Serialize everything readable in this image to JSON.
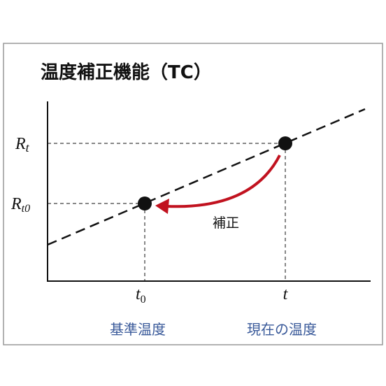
{
  "title": "温度補正機能（TC）",
  "y_labels": [
    {
      "main": "R",
      "sub": "t"
    },
    {
      "main": "R",
      "sub": "t0"
    }
  ],
  "x_labels": [
    {
      "main": "t",
      "sub": "0"
    },
    {
      "main": "t"
    }
  ],
  "annotation": "補正",
  "captions": [
    "基準温度",
    "現在の温度"
  ]
}
